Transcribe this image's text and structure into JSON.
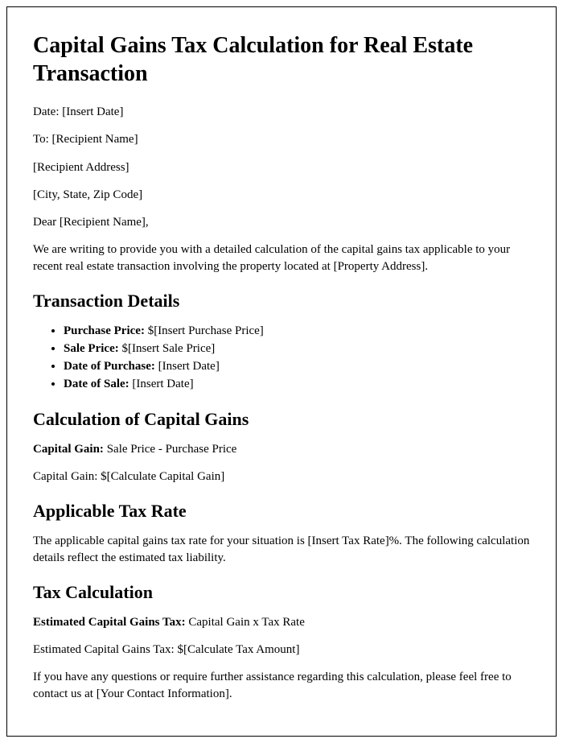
{
  "title": "Capital Gains Tax Calculation for Real Estate Transaction",
  "header": {
    "date_line": "Date: [Insert Date]",
    "to_line": "To: [Recipient Name]",
    "address_line": "[Recipient Address]",
    "city_line": "[City, State, Zip Code]",
    "salutation": "Dear [Recipient Name],"
  },
  "intro": "We are writing to provide you with a detailed calculation of the capital gains tax applicable to your recent real estate transaction involving the property located at [Property Address].",
  "transaction": {
    "heading": "Transaction Details",
    "items": [
      {
        "label": "Purchase Price:",
        "value": " $[Insert Purchase Price]"
      },
      {
        "label": "Sale Price:",
        "value": " $[Insert Sale Price]"
      },
      {
        "label": "Date of Purchase:",
        "value": " [Insert Date]"
      },
      {
        "label": "Date of Sale:",
        "value": " [Insert Date]"
      }
    ]
  },
  "calc": {
    "heading": "Calculation of Capital Gains",
    "formula_label": "Capital Gain:",
    "formula_value": " Sale Price - Purchase Price",
    "result": "Capital Gain: $[Calculate Capital Gain]"
  },
  "rate": {
    "heading": "Applicable Tax Rate",
    "text": "The applicable capital gains tax rate for your situation is [Insert Tax Rate]%. The following calculation details reflect the estimated tax liability."
  },
  "tax": {
    "heading": "Tax Calculation",
    "formula_label": "Estimated Capital Gains Tax:",
    "formula_value": " Capital Gain x Tax Rate",
    "result": "Estimated Capital Gains Tax: $[Calculate Tax Amount]"
  },
  "closing": "If you have any questions or require further assistance regarding this calculation, please feel free to contact us at [Your Contact Information]."
}
